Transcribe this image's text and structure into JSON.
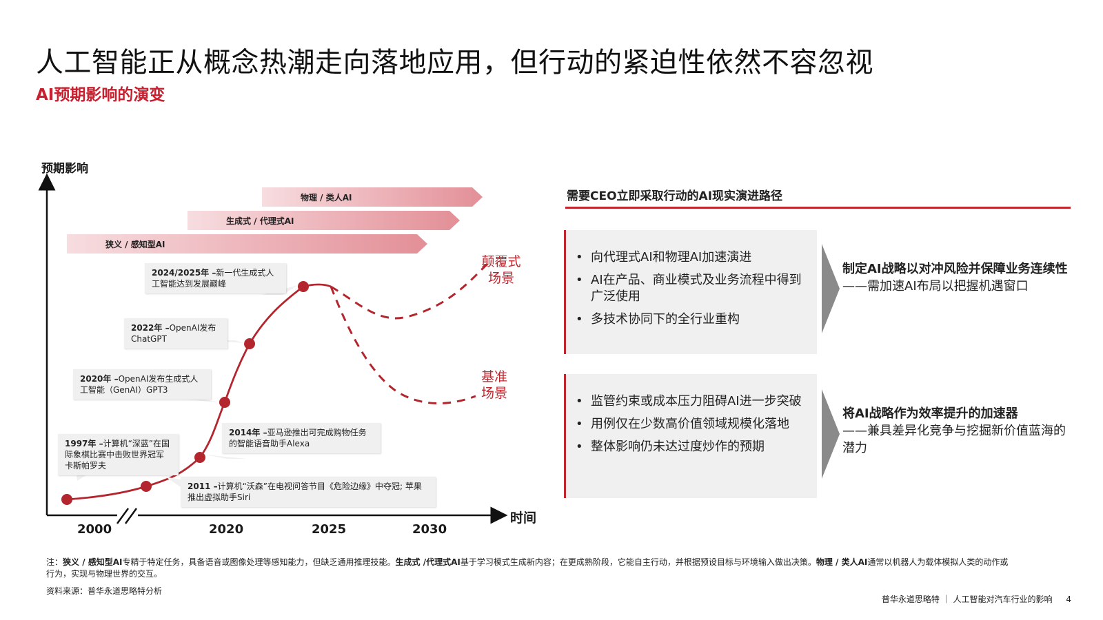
{
  "title": "人工智能正从概念热潮走向落地应用，但行动的紧迫性依然不容忽视",
  "subtitle": "AI预期影响的演变",
  "y_axis_label": "预期影响",
  "x_axis_label": "时间",
  "x_axis_years": [
    "2000",
    "2020",
    "2025",
    "2030"
  ],
  "phases": [
    {
      "label": "物理 / 类人AI"
    },
    {
      "label": "生成式 / 代理式AI"
    },
    {
      "label": "狭义 / 感知型AI"
    }
  ],
  "milestones": [
    {
      "year_bold": "1997年 –",
      "text": "计算机“深蓝”在国际象棋比赛中击败世界冠军卡斯帕罗夫"
    },
    {
      "year_bold": "2011 –",
      "text": "计算机“沃森”在电视问答节目《危险边缘》中夺冠; 苹果推出虚拟助手Siri"
    },
    {
      "year_bold": "2014年 –",
      "text": "亚马逊推出可完成购物任务的智能语音助手Alexa"
    },
    {
      "year_bold": "2020年 –",
      "text": "OpenAI发布生成式人工智能（GenAI）GPT3"
    },
    {
      "year_bold": "2022年 –",
      "text": "OpenAI发布ChatGPT"
    },
    {
      "year_bold": "2024/2025年 –",
      "text": "新一代生成式人工智能达到发展巅峰"
    }
  ],
  "scenarios": {
    "disruptive": "颠覆式场景",
    "baseline": "基准场景"
  },
  "right_heading": "需要CEO立即采取行动的AI现实演进路径",
  "panel_top": {
    "bullets": [
      "向代理式AI和物理AI加速演进",
      "AI在产品、商业模式及业务流程中得到广泛使用",
      "多技术协同下的全行业重构"
    ],
    "conclusion_bold": "制定AI战略以对冲风险并保障业务连续性",
    "conclusion_text": "——需加速AI布局以把握机遇窗口"
  },
  "panel_bottom": {
    "bullets": [
      "监管约束或成本压力阻碍AI进一步突破",
      "用例仅在少数高价值领域规模化落地",
      "整体影响仍未达过度炒作的预期"
    ],
    "conclusion_bold": "将AI战略作为效率提升的加速器",
    "conclusion_text": "——兼具差异化竞争与挖掘新价值蓝海的潜力"
  },
  "footnote": {
    "prefix": "注：",
    "t1_bold": "狭义 / 感知型AI",
    "t1": "专精于特定任务，具备语音或图像处理等感知能力，但缺乏通用推理技能。",
    "t2_bold": "生成式 /代理式AI",
    "t2": "基于学习模式生成新内容；在更成熟阶段，它能自主行动，并根据预设目标与环境输入做出决策。",
    "t3_bold": "物理 / 类人AI",
    "t3": "通常以机器人为载体模拟人类的动作或行为，实现与物理世界的交互。"
  },
  "source": "资料来源：普华永道思略特分析",
  "footer": "普华永道思略特 ｜ 人工智能对汽车行业的影响",
  "page_number": "4",
  "colors": {
    "accent": "#c0262e",
    "panel_bg": "#f0f0f0",
    "phase_arrow": "#e9a5aa"
  }
}
